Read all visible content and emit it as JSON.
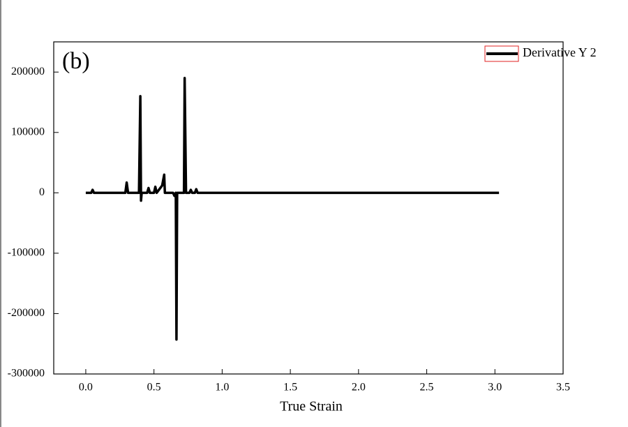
{
  "chart_data": {
    "type": "line",
    "annotation": "(b)",
    "x_label": "True Strain",
    "x": [
      0.0,
      0.04,
      0.05,
      0.06,
      0.29,
      0.3,
      0.31,
      0.39,
      0.4,
      0.405,
      0.41,
      0.45,
      0.46,
      0.47,
      0.5,
      0.51,
      0.52,
      0.56,
      0.575,
      0.58,
      0.59,
      0.64,
      0.65,
      0.66,
      0.665,
      0.67,
      0.72,
      0.725,
      0.735,
      0.76,
      0.77,
      0.78,
      0.8,
      0.81,
      0.82,
      1.0,
      3.03
    ],
    "series": [
      {
        "name": "Derivative Y 2",
        "color": "#000000",
        "values": [
          0,
          0,
          5000,
          0,
          0,
          17000,
          0,
          0,
          160000,
          -13000,
          0,
          0,
          8000,
          0,
          0,
          10000,
          0,
          12000,
          30000,
          0,
          0,
          0,
          -5000,
          0,
          -243000,
          0,
          0,
          190000,
          0,
          0,
          5000,
          0,
          0,
          6000,
          0,
          0,
          0
        ]
      }
    ],
    "xlim": [
      -0.235,
      3.5
    ],
    "xticks": [
      {
        "value": 0,
        "label": "0.0"
      },
      0.5,
      {
        "value": 1,
        "label": "1.0"
      },
      1.5,
      {
        "value": 2,
        "label": "2.0"
      },
      2.5,
      {
        "value": 3,
        "label": "3.0"
      },
      3.5
    ],
    "ylim": [
      -300000,
      250000
    ],
    "yticks": [
      -300000,
      -200000,
      -100000,
      0,
      100000,
      200000
    ],
    "legend": "top-right"
  }
}
